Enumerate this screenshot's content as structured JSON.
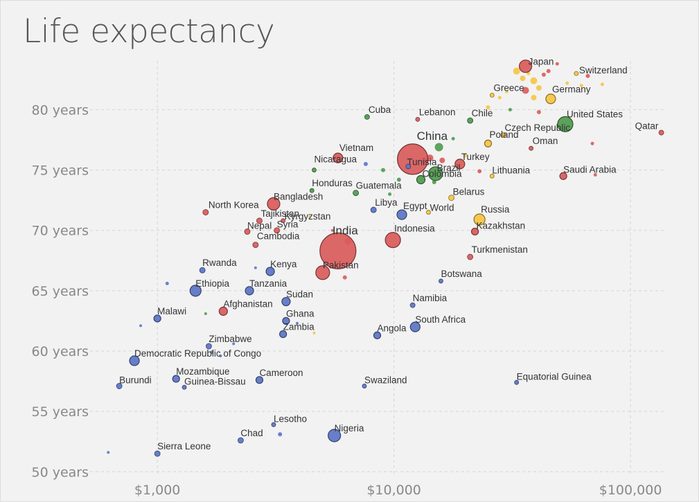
{
  "chart_data": {
    "type": "scatter",
    "title": "Life expectancy",
    "x_scale": "log",
    "xlim": [
      530,
      140000
    ],
    "ylim": [
      49.5,
      84.5
    ],
    "x_ticks": [
      {
        "value": 1000,
        "label": "$1,000"
      },
      {
        "value": 10000,
        "label": "$10,000"
      },
      {
        "value": 100000,
        "label": "$100,000"
      }
    ],
    "y_ticks": [
      {
        "value": 50,
        "label": "50 years"
      },
      {
        "value": 55,
        "label": "55 years"
      },
      {
        "value": 60,
        "label": "60 years"
      },
      {
        "value": 65,
        "label": "65 years"
      },
      {
        "value": 70,
        "label": "70 years"
      },
      {
        "value": 75,
        "label": "75 years"
      },
      {
        "value": 80,
        "label": "80 years"
      }
    ],
    "grid": true,
    "colors": {
      "Africa": "#5b74c6",
      "Asia": "#d95b5b",
      "Europe": "#f5c542",
      "Americas": "#4e9a4e"
    },
    "points": [
      {
        "name": "Japan",
        "x": 36000,
        "y": 83.6,
        "r": 9,
        "c": "Asia",
        "lx": 4,
        "ly": -2
      },
      {
        "name": "Switzerland",
        "x": 59000,
        "y": 83.0,
        "r": 3,
        "c": "Europe",
        "lx": 4,
        "ly": 0
      },
      {
        "name": "Greece",
        "x": 26000,
        "y": 81.2,
        "r": 3,
        "c": "Europe",
        "lx": 2,
        "ly": -6
      },
      {
        "name": "Germany",
        "x": 46000,
        "y": 80.9,
        "r": 7,
        "c": "Europe",
        "lx": 2,
        "ly": -9
      },
      {
        "name": "United States",
        "x": 53000,
        "y": 78.8,
        "r": 11,
        "c": "Americas",
        "lx": 2,
        "ly": -10
      },
      {
        "name": "Cuba",
        "x": 7700,
        "y": 79.4,
        "r": 3.5,
        "c": "Americas",
        "lx": 2,
        "ly": -6
      },
      {
        "name": "Lebanon",
        "x": 12600,
        "y": 79.2,
        "r": 3,
        "c": "Asia",
        "lx": 2,
        "ly": -6
      },
      {
        "name": "Chile",
        "x": 21000,
        "y": 79.1,
        "r": 4,
        "c": "Americas",
        "lx": 2,
        "ly": -6
      },
      {
        "name": "Czech Republic",
        "x": 29000,
        "y": 77.9,
        "r": 3.5,
        "c": "Europe",
        "lx": 2,
        "ly": -6
      },
      {
        "name": "Qatar",
        "x": 135000,
        "y": 78.1,
        "r": 3.5,
        "c": "Asia",
        "lx": -38,
        "ly": -5
      },
      {
        "name": "China",
        "x": 12000,
        "y": 75.9,
        "r": 22,
        "c": "Asia",
        "lx": 6,
        "ly": -28,
        "big": true
      },
      {
        "name": "Poland",
        "x": 25000,
        "y": 77.2,
        "r": 5,
        "c": "Europe",
        "lx": 2,
        "ly": -8
      },
      {
        "name": "Oman",
        "x": 38000,
        "y": 76.8,
        "r": 3,
        "c": "Asia",
        "lx": 2,
        "ly": -6
      },
      {
        "name": "Vietnam",
        "x": 5800,
        "y": 76.0,
        "r": 7,
        "c": "Asia",
        "lx": 2,
        "ly": -10
      },
      {
        "name": "Nicaragua",
        "x": 4600,
        "y": 75.0,
        "r": 3,
        "c": "Americas",
        "lx": 0,
        "ly": -11
      },
      {
        "name": "Tunisia",
        "x": 11500,
        "y": 75.3,
        "r": 3.5,
        "c": "Africa",
        "lx": -2,
        "ly": -2
      },
      {
        "name": "Brazil",
        "x": 15000,
        "y": 74.7,
        "r": 10,
        "c": "Americas",
        "lx": 2,
        "ly": -4
      },
      {
        "name": "Turkey",
        "x": 19000,
        "y": 75.5,
        "r": 7,
        "c": "Asia",
        "lx": 2,
        "ly": -6
      },
      {
        "name": "Colombia",
        "x": 13000,
        "y": 74.2,
        "r": 6,
        "c": "Americas",
        "lx": 2,
        "ly": -4
      },
      {
        "name": "Lithuania",
        "x": 26000,
        "y": 74.5,
        "r": 3,
        "c": "Europe",
        "lx": 0,
        "ly": -4
      },
      {
        "name": "Saudi Arabia",
        "x": 52000,
        "y": 74.5,
        "r": 5,
        "c": "Asia",
        "lx": 0,
        "ly": -5
      },
      {
        "name": "Honduras",
        "x": 4500,
        "y": 73.3,
        "r": 3,
        "c": "Americas",
        "lx": 0,
        "ly": -6
      },
      {
        "name": "Guatemala",
        "x": 6900,
        "y": 73.1,
        "r": 4,
        "c": "Americas",
        "lx": 0,
        "ly": -6
      },
      {
        "name": "Bangladesh",
        "x": 3100,
        "y": 72.2,
        "r": 9,
        "c": "Asia",
        "lx": 0,
        "ly": -6
      },
      {
        "name": "Belarus",
        "x": 17500,
        "y": 72.7,
        "r": 4,
        "c": "Europe",
        "lx": 2,
        "ly": -4
      },
      {
        "name": "North Korea",
        "x": 1600,
        "y": 71.5,
        "r": 4,
        "c": "Asia",
        "lx": 4,
        "ly": -6
      },
      {
        "name": "Libya",
        "x": 8200,
        "y": 71.7,
        "r": 4,
        "c": "Africa",
        "lx": 2,
        "ly": -6
      },
      {
        "name": "Egypt",
        "x": 10800,
        "y": 71.3,
        "r": 7,
        "c": "Africa",
        "lx": 2,
        "ly": -8
      },
      {
        "name": "World",
        "x": 14000,
        "y": 71.5,
        "r": 3,
        "c": "Europe",
        "lx": 2,
        "ly": -2
      },
      {
        "name": "Tajikistan",
        "x": 2700,
        "y": 70.8,
        "r": 4,
        "c": "Asia",
        "lx": 2,
        "ly": -6
      },
      {
        "name": "Kyrgyzstan",
        "x": 3400,
        "y": 70.8,
        "r": 3,
        "c": "Asia",
        "lx": 2,
        "ly": -2
      },
      {
        "name": "Russia",
        "x": 23000,
        "y": 70.9,
        "r": 8,
        "c": "Europe",
        "lx": 2,
        "ly": -10
      },
      {
        "name": "Nepal",
        "x": 2400,
        "y": 69.9,
        "r": 4,
        "c": "Asia",
        "lx": 0,
        "ly": -4
      },
      {
        "name": "Syria",
        "x": 3200,
        "y": 70.0,
        "r": 4,
        "c": "Asia",
        "lx": 0,
        "ly": -4
      },
      {
        "name": "India",
        "x": 5800,
        "y": 68.3,
        "r": 26,
        "c": "Asia",
        "lx": -8,
        "ly": -24,
        "big": true
      },
      {
        "name": "Indonesia",
        "x": 9900,
        "y": 69.2,
        "r": 11,
        "c": "Asia",
        "lx": 2,
        "ly": -12
      },
      {
        "name": "Kazakhstan",
        "x": 22000,
        "y": 69.9,
        "r": 5,
        "c": "Asia",
        "lx": 2,
        "ly": -4
      },
      {
        "name": "Cambodia",
        "x": 2600,
        "y": 68.8,
        "r": 4,
        "c": "Asia",
        "lx": 2,
        "ly": -8
      },
      {
        "name": "Turkmenistan",
        "x": 21000,
        "y": 67.8,
        "r": 4,
        "c": "Asia",
        "lx": 2,
        "ly": -6
      },
      {
        "name": "Rwanda",
        "x": 1550,
        "y": 66.7,
        "r": 4,
        "c": "Africa",
        "lx": 0,
        "ly": -6
      },
      {
        "name": "Kenya",
        "x": 3000,
        "y": 66.6,
        "r": 6,
        "c": "Africa",
        "lx": 0,
        "ly": -6
      },
      {
        "name": "Pakistan",
        "x": 5000,
        "y": 66.5,
        "r": 10,
        "c": "Asia",
        "lx": 0,
        "ly": -6
      },
      {
        "name": "Botswana",
        "x": 15800,
        "y": 65.8,
        "r": 3,
        "c": "Africa",
        "lx": 0,
        "ly": -6
      },
      {
        "name": "Ethiopia",
        "x": 1450,
        "y": 65.0,
        "r": 8,
        "c": "Africa",
        "lx": 0,
        "ly": -6
      },
      {
        "name": "Tanzania",
        "x": 2450,
        "y": 65.0,
        "r": 6,
        "c": "Africa",
        "lx": 0,
        "ly": -6
      },
      {
        "name": "Sudan",
        "x": 3500,
        "y": 64.1,
        "r": 6,
        "c": "Africa",
        "lx": 0,
        "ly": -6
      },
      {
        "name": "Namibia",
        "x": 12000,
        "y": 63.8,
        "r": 3.5,
        "c": "Africa",
        "lx": 0,
        "ly": -6
      },
      {
        "name": "Afghanistan",
        "x": 1900,
        "y": 63.3,
        "r": 6,
        "c": "Asia",
        "lx": 0,
        "ly": -6
      },
      {
        "name": "Malawi",
        "x": 1000,
        "y": 62.7,
        "r": 5,
        "c": "Africa",
        "lx": 0,
        "ly": -6
      },
      {
        "name": "Ghana",
        "x": 3500,
        "y": 62.5,
        "r": 5,
        "c": "Africa",
        "lx": 0,
        "ly": -6
      },
      {
        "name": "South Africa",
        "x": 12300,
        "y": 62.0,
        "r": 7,
        "c": "Africa",
        "lx": 0,
        "ly": -6
      },
      {
        "name": "Zambia",
        "x": 3400,
        "y": 61.4,
        "r": 5,
        "c": "Africa",
        "lx": 0,
        "ly": -6
      },
      {
        "name": "Angola",
        "x": 8500,
        "y": 61.3,
        "r": 5,
        "c": "Africa",
        "lx": 0,
        "ly": -6
      },
      {
        "name": "Zimbabwe",
        "x": 1650,
        "y": 60.4,
        "r": 4,
        "c": "Africa",
        "lx": 0,
        "ly": -6
      },
      {
        "name": "Democratic Republic of Congo",
        "x": 800,
        "y": 59.2,
        "r": 7,
        "c": "Africa",
        "lx": 0,
        "ly": -6
      },
      {
        "name": "Mozambique",
        "x": 1200,
        "y": 57.7,
        "r": 5,
        "c": "Africa",
        "lx": 0,
        "ly": -6
      },
      {
        "name": "Cameroon",
        "x": 2700,
        "y": 57.6,
        "r": 5,
        "c": "Africa",
        "lx": 0,
        "ly": -6
      },
      {
        "name": "Guinea-Bissau",
        "x": 1300,
        "y": 57.0,
        "r": 3,
        "c": "Africa",
        "lx": 0,
        "ly": -4
      },
      {
        "name": "Burundi",
        "x": 690,
        "y": 57.1,
        "r": 4,
        "c": "Africa",
        "lx": 0,
        "ly": -4
      },
      {
        "name": "Swaziland",
        "x": 7500,
        "y": 57.1,
        "r": 3,
        "c": "Africa",
        "lx": 0,
        "ly": -4
      },
      {
        "name": "Equatorial Guinea",
        "x": 33000,
        "y": 57.4,
        "r": 3,
        "c": "Africa",
        "lx": 0,
        "ly": -4
      },
      {
        "name": "Lesotho",
        "x": 3100,
        "y": 53.9,
        "r": 3,
        "c": "Africa",
        "lx": 0,
        "ly": -4
      },
      {
        "name": "Nigeria",
        "x": 5600,
        "y": 53.0,
        "r": 9,
        "c": "Africa",
        "lx": 0,
        "ly": -6
      },
      {
        "name": "Chad",
        "x": 2250,
        "y": 52.6,
        "r": 4,
        "c": "Africa",
        "lx": 0,
        "ly": -6
      },
      {
        "name": "Sierra Leone",
        "x": 1000,
        "y": 51.5,
        "r": 4,
        "c": "Africa",
        "lx": 0,
        "ly": -6
      }
    ],
    "unlabeled_points": [
      {
        "x": 620,
        "y": 51.6,
        "r": 2,
        "c": "Africa"
      },
      {
        "x": 850,
        "y": 62.1,
        "r": 2,
        "c": "Africa"
      },
      {
        "x": 1100,
        "y": 65.6,
        "r": 2.5,
        "c": "Africa"
      },
      {
        "x": 1600,
        "y": 63.1,
        "r": 2,
        "c": "Americas"
      },
      {
        "x": 1700,
        "y": 59.9,
        "r": 2.5,
        "c": "Africa"
      },
      {
        "x": 1850,
        "y": 59.6,
        "r": 2,
        "c": "Africa"
      },
      {
        "x": 2100,
        "y": 60.6,
        "r": 2,
        "c": "Africa"
      },
      {
        "x": 2600,
        "y": 66.9,
        "r": 2,
        "c": "Africa"
      },
      {
        "x": 3300,
        "y": 53.1,
        "r": 3,
        "c": "Africa"
      },
      {
        "x": 3900,
        "y": 62.3,
        "r": 2,
        "c": "Africa"
      },
      {
        "x": 4400,
        "y": 71.1,
        "r": 2,
        "c": "Europe"
      },
      {
        "x": 4600,
        "y": 61.5,
        "r": 2,
        "c": "Europe"
      },
      {
        "x": 5500,
        "y": 70.0,
        "r": 2,
        "c": "Asia"
      },
      {
        "x": 6400,
        "y": 69.1,
        "r": 5,
        "c": "Asia"
      },
      {
        "x": 6200,
        "y": 66.1,
        "r": 3,
        "c": "Asia"
      },
      {
        "x": 7600,
        "y": 75.5,
        "r": 3,
        "c": "Africa"
      },
      {
        "x": 9000,
        "y": 75.0,
        "r": 3,
        "c": "Americas"
      },
      {
        "x": 9600,
        "y": 73.0,
        "r": 2.5,
        "c": "Americas"
      },
      {
        "x": 10500,
        "y": 74.2,
        "r": 3,
        "c": "Americas"
      },
      {
        "x": 13500,
        "y": 75.8,
        "r": 4,
        "c": "Asia"
      },
      {
        "x": 14200,
        "y": 76.0,
        "r": 5,
        "c": "Asia"
      },
      {
        "x": 15500,
        "y": 76.9,
        "r": 6,
        "c": "Americas"
      },
      {
        "x": 16000,
        "y": 75.8,
        "r": 4,
        "c": "Asia"
      },
      {
        "x": 14800,
        "y": 74.0,
        "r": 3,
        "c": "Americas"
      },
      {
        "x": 17800,
        "y": 77.6,
        "r": 2.5,
        "c": "Americas"
      },
      {
        "x": 20000,
        "y": 76.2,
        "r": 2.5,
        "c": "Europe"
      },
      {
        "x": 23000,
        "y": 74.9,
        "r": 3,
        "c": "Asia"
      },
      {
        "x": 25000,
        "y": 80.2,
        "r": 3,
        "c": "Europe"
      },
      {
        "x": 28000,
        "y": 81.0,
        "r": 2.5,
        "c": "Europe"
      },
      {
        "x": 31000,
        "y": 80.0,
        "r": 2.5,
        "c": "Americas"
      },
      {
        "x": 33000,
        "y": 83.2,
        "r": 5,
        "c": "Europe"
      },
      {
        "x": 35000,
        "y": 82.6,
        "r": 4,
        "c": "Europe"
      },
      {
        "x": 39000,
        "y": 82.4,
        "r": 5,
        "c": "Europe"
      },
      {
        "x": 41000,
        "y": 81.8,
        "r": 4,
        "c": "Europe"
      },
      {
        "x": 43000,
        "y": 82.9,
        "r": 3,
        "c": "Asia"
      },
      {
        "x": 36000,
        "y": 81.6,
        "r": 5,
        "c": "Asia"
      },
      {
        "x": 39000,
        "y": 81.0,
        "r": 4,
        "c": "Europe"
      },
      {
        "x": 41000,
        "y": 79.8,
        "r": 3,
        "c": "Asia"
      },
      {
        "x": 45000,
        "y": 83.2,
        "r": 3,
        "c": "Asia"
      },
      {
        "x": 49000,
        "y": 83.8,
        "r": 2.5,
        "c": "Asia"
      },
      {
        "x": 54000,
        "y": 82.2,
        "r": 2.5,
        "c": "Europe"
      },
      {
        "x": 62000,
        "y": 82.0,
        "r": 2.5,
        "c": "Europe"
      },
      {
        "x": 66000,
        "y": 82.8,
        "r": 3,
        "c": "Asia"
      },
      {
        "x": 69000,
        "y": 77.2,
        "r": 2.5,
        "c": "Asia"
      },
      {
        "x": 71000,
        "y": 74.6,
        "r": 2.5,
        "c": "Asia"
      },
      {
        "x": 76000,
        "y": 82.1,
        "r": 2.5,
        "c": "Europe"
      },
      {
        "x": 37000,
        "y": 83.0,
        "r": 2.5,
        "c": "Europe"
      },
      {
        "x": 30000,
        "y": 81.5,
        "r": 2.5,
        "c": "Europe"
      }
    ]
  }
}
